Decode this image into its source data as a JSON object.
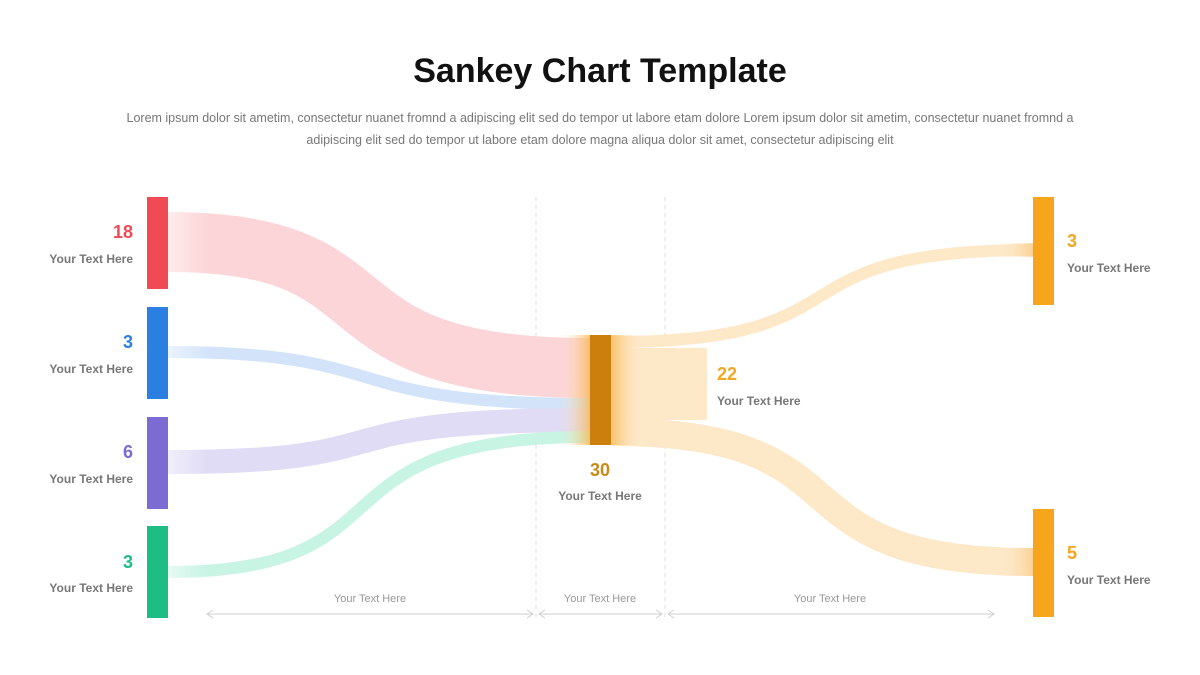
{
  "header": {
    "title": "Sankey Chart Template",
    "subtitle": "Lorem ipsum dolor sit ametim, consectetur nuanet fromnd a adipiscing elit sed do tempor ut labore etam dolore Lorem ipsum dolor sit ametim, consectetur nuanet fromnd a adipiscing elit sed do tempor ut labore etam dolore magna aliqua dolor sit amet, consectetur adipiscing elit"
  },
  "sources": [
    {
      "value": "18",
      "label": "Your Text Here",
      "color": "#f04a55",
      "flow_color": "#fcd5d8"
    },
    {
      "value": "3",
      "label": "Your Text Here",
      "color": "#2b7fe0",
      "flow_color": "#d3e4fa"
    },
    {
      "value": "6",
      "label": "Your Text Here",
      "color": "#7b6bd3",
      "flow_color": "#e0dcf5"
    },
    {
      "value": "3",
      "label": "Your Text Here",
      "color": "#1dbd83",
      "flow_color": "#c8f4e4"
    }
  ],
  "center": {
    "value": "30",
    "label": "Your Text Here",
    "color": "#cc7f0c",
    "value_color": "#c98a1a"
  },
  "middle": {
    "value": "22",
    "label": "Your Text Here",
    "color": "#f5a623"
  },
  "targets": [
    {
      "value": "3",
      "label": "Your Text Here",
      "color": "#f7a51d"
    },
    {
      "value": "5",
      "label": "Your Text Here",
      "color": "#f7a51d"
    }
  ],
  "flow_color_out": "#fde8c8",
  "axis_labels": [
    "Your Text Here",
    "Your Text Here",
    "Your Text Here"
  ]
}
